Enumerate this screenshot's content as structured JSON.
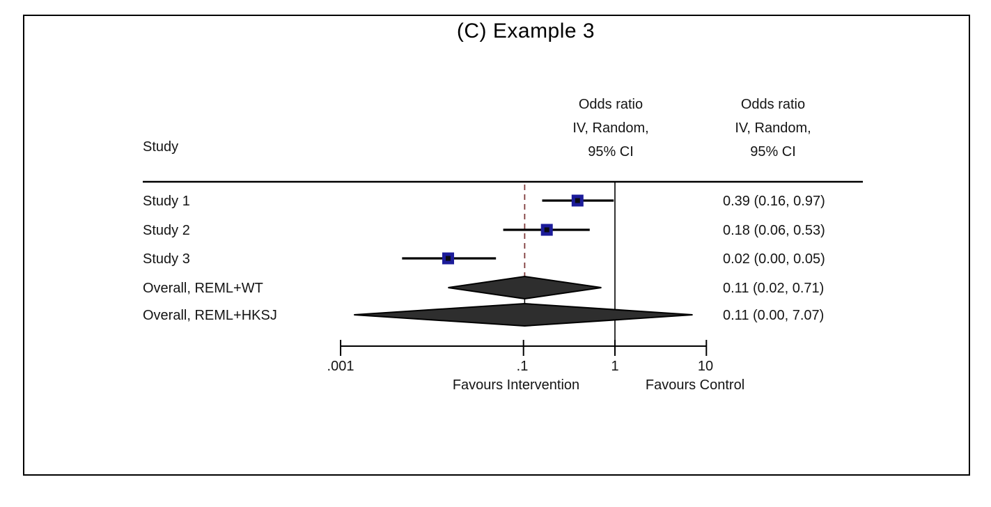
{
  "title": "(C) Example 3",
  "columns": {
    "study_header": "Study",
    "plot_header": "Odds  ratio\nIV, Random,\n95% CI",
    "values_header": "Odds  ratio\nIV, Random,\n95% CI"
  },
  "axis": {
    "scale": "log10",
    "ticks": [
      {
        "label": ".001",
        "value": 0.001
      },
      {
        "label": ".1",
        "value": 0.1
      },
      {
        "label": "1",
        "value": 1
      },
      {
        "label": "10",
        "value": 10
      }
    ],
    "left_label": "Favours Intervention",
    "right_label": "Favours Control",
    "null_line_value": 1,
    "pooled_line_value": 0.103
  },
  "chart_data": {
    "type": "forest",
    "title": "(C) Example 3",
    "effect_measure": "Odds ratio, IV, Random, 95% CI",
    "x_scale": "log",
    "xlim": [
      0.001,
      10
    ],
    "rows": [
      {
        "label": "Study 1",
        "kind": "study",
        "display": "0.39 (0.16, 0.97)",
        "point": 0.39,
        "ci_low": 0.16,
        "ci_high": 0.97
      },
      {
        "label": "Study 2",
        "kind": "study",
        "display": "0.18 (0.06, 0.53)",
        "point": 0.18,
        "ci_low": 0.06,
        "ci_high": 0.53
      },
      {
        "label": "Study 3",
        "kind": "study",
        "display": "0.02 (0.00, 0.05)",
        "point": 0.02,
        "ci_low": 0.0,
        "ci_high": 0.05,
        "plot_point": 0.015,
        "plot_low": 0.0047,
        "plot_high": 0.05
      },
      {
        "label": "Overall, REML+WT",
        "kind": "overall",
        "display": "0.11 (0.02, 0.71)",
        "point": 0.11,
        "ci_low": 0.02,
        "ci_high": 0.71,
        "plot_point": 0.103,
        "plot_low": 0.015,
        "plot_high": 0.71
      },
      {
        "label": "Overall, REML+HKSJ",
        "kind": "overall",
        "display": "0.11 (0.00, 7.07)",
        "point": 0.11,
        "ci_low": 0.0,
        "ci_high": 7.07,
        "plot_point": 0.103,
        "plot_low": 0.0014,
        "plot_high": 7.07
      }
    ]
  },
  "colors": {
    "marker": "#1c1c9a",
    "marker_core": "#0a0a14",
    "diamond_fill": "#2e2e2e",
    "pooled_line": "#7e3a3a",
    "axis": "#000000"
  }
}
